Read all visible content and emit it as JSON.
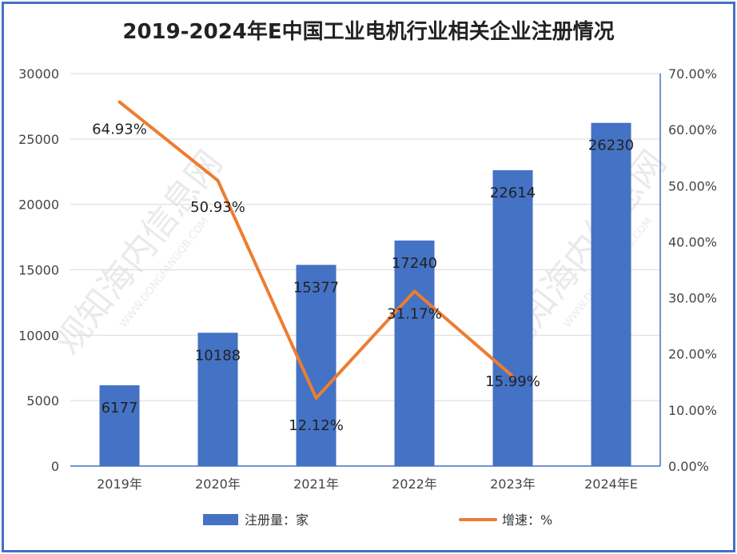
{
  "chart_data": {
    "type": "bar",
    "title": "2019-2024年E中国工业电机行业相关企业注册情况",
    "categories": [
      "2019年",
      "2020年",
      "2021年",
      "2022年",
      "2023年",
      "2024年E"
    ],
    "series": [
      {
        "name": "注册量：家",
        "type": "bar",
        "axis": "left",
        "values": [
          6177,
          10188,
          15377,
          17240,
          22614,
          26230
        ],
        "labels": [
          "6177",
          "10188",
          "15377",
          "17240",
          "22614",
          "26230"
        ]
      },
      {
        "name": "增速：%",
        "type": "line",
        "axis": "right",
        "values": [
          64.93,
          50.93,
          12.12,
          31.17,
          15.99,
          null
        ],
        "labels": [
          "64.93%",
          "50.93%",
          "12.12%",
          "31.17%",
          "15.99%",
          null
        ]
      }
    ],
    "ylim_left": [
      0,
      30000
    ],
    "ylim_right": [
      0,
      70
    ],
    "yticks_left": [
      "0",
      "5000",
      "10000",
      "15000",
      "20000",
      "25000",
      "30000"
    ],
    "yticks_right": [
      "0.00%",
      "10.00%",
      "20.00%",
      "30.00%",
      "40.00%",
      "50.00%",
      "60.00%",
      "70.00%"
    ],
    "legend_position": "bottom",
    "grid": true,
    "colors": {
      "bar": "#4472c4",
      "line": "#ed7d31",
      "border": "#4472c4",
      "grid": "#d9d9d9"
    }
  },
  "watermark": {
    "brand": "观知海内信息网",
    "domain": "WWW.DONGFANGQB.COM"
  }
}
